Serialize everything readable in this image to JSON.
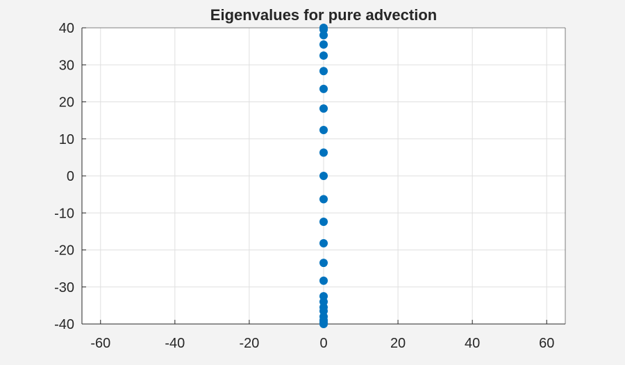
{
  "chart_data": {
    "type": "scatter",
    "title": "Eigenvalues for pure advection",
    "xlabel": "",
    "ylabel": "",
    "xlim": [
      -65,
      65
    ],
    "ylim": [
      -40,
      40
    ],
    "x_ticks": [
      -60,
      -40,
      -20,
      0,
      20,
      40,
      60
    ],
    "y_ticks": [
      -40,
      -30,
      -20,
      -10,
      0,
      10,
      20,
      30,
      40
    ],
    "grid": true,
    "marker_color": "#0072BD",
    "series": [
      {
        "x": [
          0,
          0,
          0,
          0,
          0,
          0,
          0,
          0,
          0,
          0,
          0,
          0,
          0,
          0,
          0,
          0,
          0,
          0,
          0,
          0,
          0,
          0,
          0,
          0
        ],
        "y": [
          40,
          39.5,
          38,
          35.5,
          32.5,
          28.3,
          23.5,
          18.2,
          12.4,
          6.3,
          0,
          -6.3,
          -12.4,
          -18.2,
          -23.5,
          -28.3,
          -32.5,
          -35.5,
          -38,
          -39.5,
          -40,
          -39,
          -36.5,
          -34
        ]
      }
    ]
  }
}
